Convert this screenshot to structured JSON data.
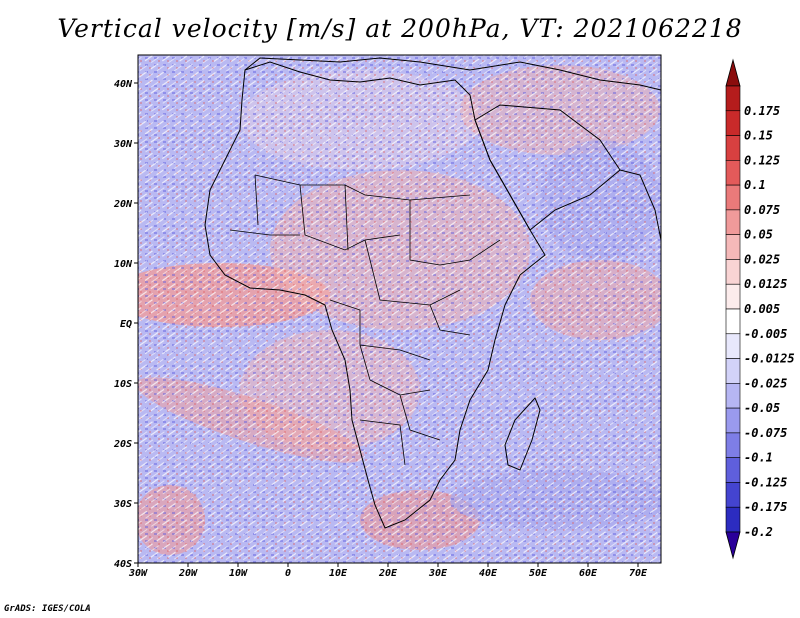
{
  "title": "Vertical velocity [m/s] at 200hPa, VT: 2021062218",
  "credit": "GrADS: IGES/COLA",
  "lat_labels": [
    "40N",
    "30N",
    "20N",
    "10N",
    "EQ",
    "10S",
    "20S",
    "30S",
    "40S"
  ],
  "lon_labels": [
    "30W",
    "20W",
    "10W",
    "0",
    "10E",
    "20E",
    "30E",
    "40E",
    "50E",
    "60E",
    "70E"
  ],
  "colorbar": {
    "max_color": "#8b0d0d",
    "min_color": "#2a009a",
    "bins": [
      {
        "label": "0.175",
        "color": "#b51c1c"
      },
      {
        "label": "0.15",
        "color": "#c92a2a"
      },
      {
        "label": "0.125",
        "color": "#d84040"
      },
      {
        "label": "0.1",
        "color": "#e35a5a"
      },
      {
        "label": "0.075",
        "color": "#ea7a7a"
      },
      {
        "label": "0.05",
        "color": "#f09a9a"
      },
      {
        "label": "0.025",
        "color": "#f5b9b9"
      },
      {
        "label": "0.0125",
        "color": "#f9d4d4"
      },
      {
        "label": "0.005",
        "color": "#fcecec"
      },
      {
        "label": "-0.005",
        "color": "#ffffff"
      },
      {
        "label": "-0.0125",
        "color": "#e8e8fc"
      },
      {
        "label": "-0.025",
        "color": "#d2d2f8"
      },
      {
        "label": "-0.05",
        "color": "#b6b6f3"
      },
      {
        "label": "-0.075",
        "color": "#9a9aee"
      },
      {
        "label": "-0.1",
        "color": "#7e7ee6"
      },
      {
        "label": "-0.125",
        "color": "#5f5fdc"
      },
      {
        "label": "-0.175",
        "color": "#4444d0"
      },
      {
        "label": "-0.2",
        "color": "#2c2cc0"
      }
    ]
  }
}
